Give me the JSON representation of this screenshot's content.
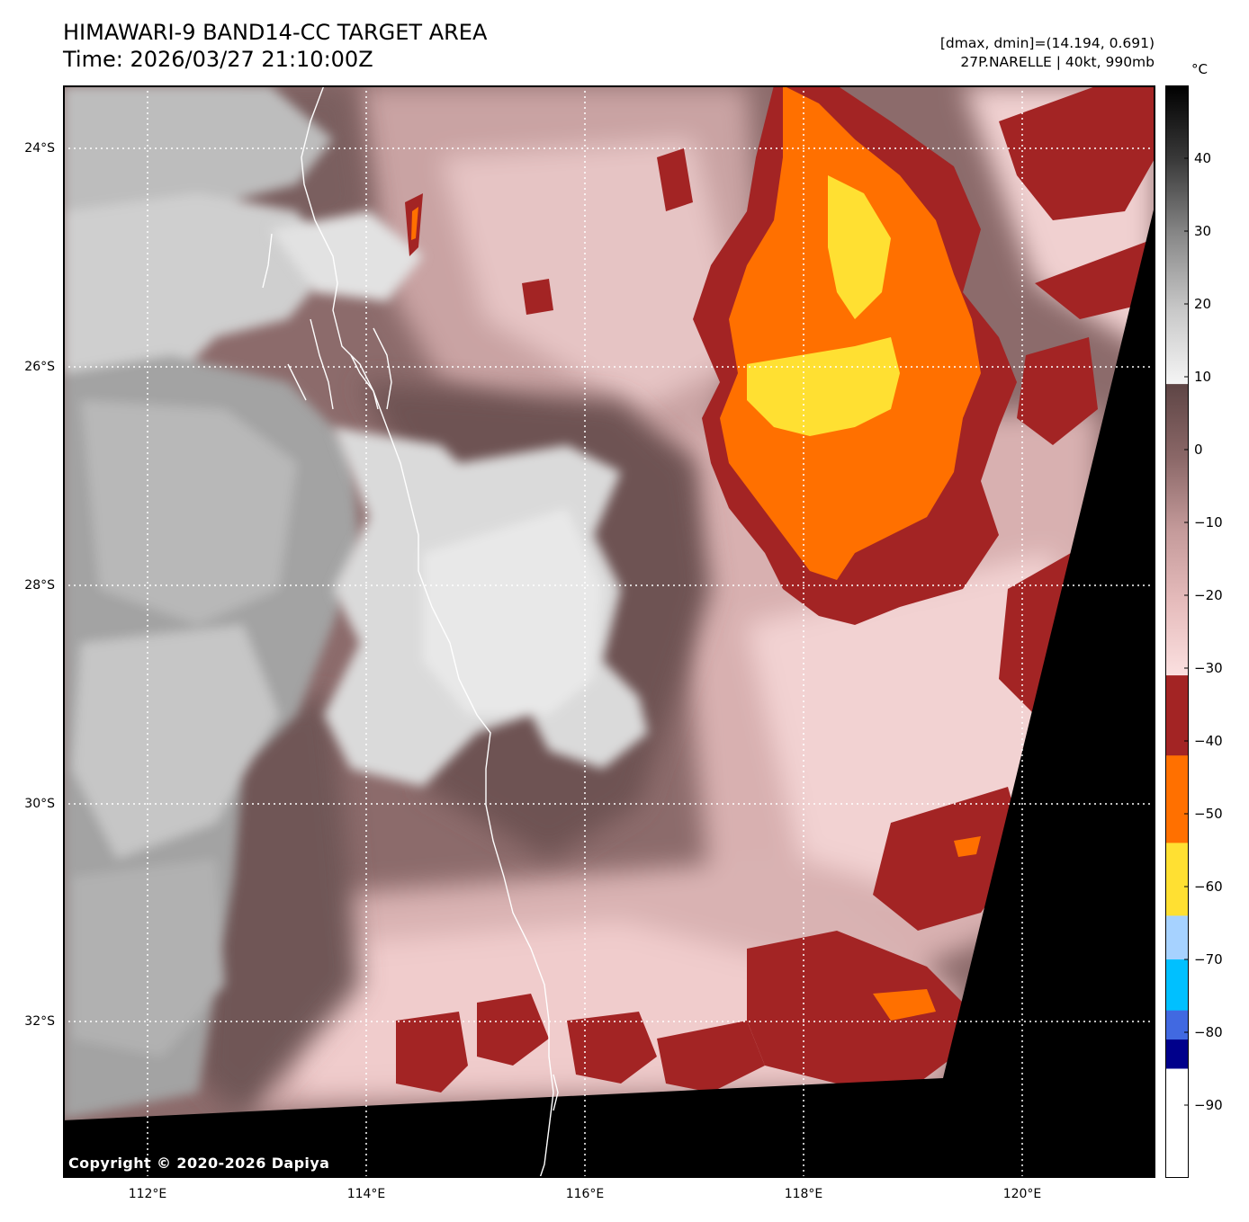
{
  "header": {
    "title_line1": "HIMAWARI-9 BAND14-CC TARGET AREA",
    "title_line2": "Time: 2026/03/27 21:10:00Z",
    "info_line1": "[dmax, dmin]=(14.194, 0.691)",
    "info_line2": "27P.NARELLE | 40kt, 990mb"
  },
  "map": {
    "lat_labels": [
      "24°S",
      "26°S",
      "28°S",
      "30°S",
      "32°S"
    ],
    "lat_values": [
      -24,
      -26,
      -28,
      -30,
      -32
    ],
    "lon_labels": [
      "112°E",
      "114°E",
      "116°E",
      "118°E",
      "120°E"
    ],
    "lon_values": [
      112,
      114,
      116,
      118,
      120
    ],
    "extent": {
      "lon_min": 111.24,
      "lon_max": 121.22,
      "lat_max": -23.42,
      "lat_min": -33.43
    },
    "copyright": "Copyright © 2020-2026 Dapiya",
    "no_data_color": "#000000",
    "coastline_color": "#ffffff"
  },
  "colorbar": {
    "unit": "°C",
    "range": [
      -100,
      50
    ],
    "tick_values": [
      40,
      30,
      20,
      10,
      0,
      -10,
      -20,
      -30,
      -40,
      -50,
      -60,
      -70,
      -80,
      -90
    ],
    "tick_labels": [
      "40",
      "30",
      "20",
      "10",
      "0",
      "−10",
      "−20",
      "−30",
      "−40",
      "−50",
      "−60",
      "−70",
      "−80",
      "−90"
    ],
    "segments": [
      {
        "from": 9,
        "to": 50,
        "type": "gradient",
        "stops": [
          "#f5f5f5",
          "#c8c8c8",
          "#888888",
          "#3a3a3a",
          "#000000"
        ]
      },
      {
        "from": -31,
        "to": 9,
        "type": "gradient",
        "stops": [
          "#fbe0e0",
          "#e6bcbc",
          "#c49a9a",
          "#8a6767",
          "#5e4545"
        ]
      },
      {
        "from": -42,
        "to": -31,
        "type": "solid",
        "color": "#a32424"
      },
      {
        "from": -54,
        "to": -42,
        "type": "solid",
        "color": "#ff7000"
      },
      {
        "from": -64,
        "to": -54,
        "type": "solid",
        "color": "#ffe032"
      },
      {
        "from": -70,
        "to": -64,
        "type": "solid",
        "color": "#a6d2ff"
      },
      {
        "from": -77,
        "to": -70,
        "type": "solid",
        "color": "#00c0ff"
      },
      {
        "from": -81,
        "to": -77,
        "type": "solid",
        "color": "#4169e1"
      },
      {
        "from": -85,
        "to": -81,
        "type": "solid",
        "color": "#00008b"
      },
      {
        "from": -100,
        "to": -85,
        "type": "solid",
        "color": "#ffffff"
      }
    ]
  }
}
